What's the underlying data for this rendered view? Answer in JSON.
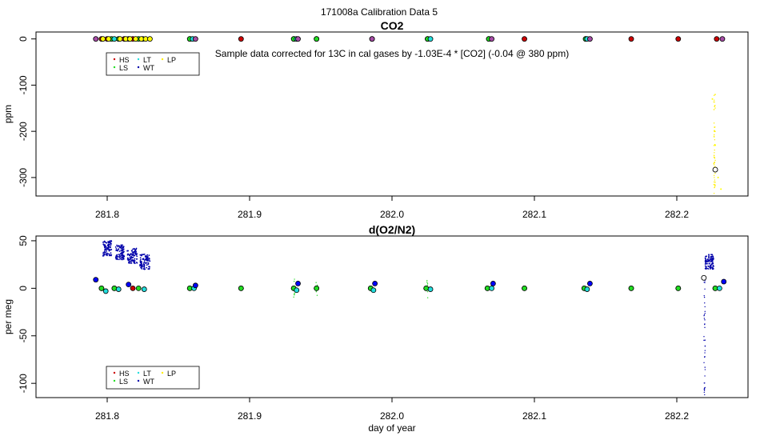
{
  "header": {
    "title": "171008a   Calibration Data 5"
  },
  "colors": {
    "HS": "#cc0000",
    "LS": "#22dd22",
    "LT": "#22dddd",
    "WT": "#0000aa",
    "LP": "#ffee00",
    "WT_marker": "#0000ff",
    "LP_marker": "#ffff00",
    "CO2_purple": "#a64ca6"
  },
  "chart_data": [
    {
      "type": "scatter",
      "title": "CO2",
      "xlabel": "",
      "ylabel": "ppm",
      "xlim": [
        281.75,
        282.25
      ],
      "ylim": [
        -340,
        15
      ],
      "x_ticks": [
        281.8,
        281.9,
        282.0,
        282.1,
        282.2
      ],
      "x_tick_labels": [
        "281.8",
        "281.9",
        "282.0",
        "282.1",
        "282.2"
      ],
      "y_ticks": [
        0,
        -100,
        -200,
        -300
      ],
      "y_tick_labels": [
        "0",
        "-100",
        "-200",
        "-300"
      ],
      "annotation": "Sample data corrected for 13C in cal gases by -1.03E-4 * [CO2] (-0.04 @ 380 ppm)",
      "legend": {
        "placement": "top-left",
        "entries": [
          "HS",
          "LS",
          "LT",
          "WT",
          "LP"
        ]
      },
      "grid": false,
      "series": [
        {
          "name": "HS",
          "color": "#cc0000",
          "x": [
            281.796,
            281.8,
            281.812,
            281.818,
            281.858,
            281.894,
            281.931,
            281.947,
            281.986,
            282.025,
            282.068,
            282.093,
            282.136,
            282.168,
            282.201,
            282.228
          ],
          "y": [
            0,
            0,
            0,
            0,
            0,
            0,
            0,
            0,
            0,
            0,
            0,
            0,
            0,
            0,
            0,
            0
          ]
        },
        {
          "name": "LS",
          "color": "#22dd22",
          "x": [
            281.803,
            281.808,
            281.822,
            281.858,
            281.931,
            281.947,
            282.025,
            282.068,
            282.136
          ],
          "y": [
            0,
            0,
            0,
            0,
            0,
            0,
            0,
            0,
            0
          ]
        },
        {
          "name": "LT",
          "color": "#22dddd",
          "x": [
            281.805,
            281.825,
            281.86,
            281.933,
            282.027,
            282.137
          ],
          "y": [
            0,
            0,
            0,
            0,
            0,
            0
          ]
        },
        {
          "name": "WT",
          "color": "#0000aa",
          "x": [
            281.792,
            281.815,
            281.862,
            281.934,
            281.986,
            282.07,
            282.139,
            282.232
          ],
          "y": [
            0,
            0,
            0,
            0,
            0,
            0,
            0,
            0
          ]
        },
        {
          "name": "LP",
          "color": "#ffee00",
          "x": [
            281.797,
            281.801,
            281.809,
            281.813,
            281.816,
            281.82,
            281.824,
            281.827,
            281.83,
            282.225,
            282.227,
            282.229,
            282.231
          ],
          "y": [
            0,
            0,
            0,
            0,
            0,
            0,
            0,
            0,
            0,
            -130,
            -230,
            -300,
            -325
          ]
        }
      ],
      "outliers": [
        {
          "x": 282.227,
          "y": -283
        }
      ]
    },
    {
      "type": "scatter",
      "title": "d(O2/N2)",
      "xlabel": "day of year",
      "ylabel": "per meg",
      "xlim": [
        281.75,
        282.25
      ],
      "ylim": [
        -115,
        55
      ],
      "x_ticks": [
        281.8,
        281.9,
        282.0,
        282.1,
        282.2
      ],
      "x_tick_labels": [
        "281.8",
        "281.9",
        "282.0",
        "282.1",
        "282.2"
      ],
      "y_ticks": [
        50,
        0,
        -50,
        -100
      ],
      "y_tick_labels": [
        "50",
        "0",
        "-50",
        "-100"
      ],
      "legend": {
        "placement": "bottom-left",
        "entries": [
          "HS",
          "LS",
          "LT",
          "WT",
          "LP"
        ]
      },
      "grid": false,
      "series": [
        {
          "name": "HS",
          "color": "#cc0000",
          "x": [
            281.796,
            281.805,
            281.818,
            281.858,
            281.894,
            281.931,
            281.947,
            281.985,
            282.024,
            282.067,
            282.093,
            282.135,
            282.168,
            282.201,
            282.227
          ],
          "y": [
            0,
            0,
            0,
            0,
            0,
            0,
            0,
            0,
            0,
            0,
            0,
            0,
            0,
            0,
            0
          ]
        },
        {
          "name": "LS",
          "color": "#22dd22",
          "x": [
            281.796,
            281.805,
            281.822,
            281.858,
            281.894,
            281.931,
            281.947,
            281.985,
            282.024,
            282.067,
            282.093,
            282.135,
            282.168,
            282.201,
            282.227
          ],
          "y": [
            0,
            0,
            0,
            0,
            0,
            0,
            0,
            0,
            0,
            0,
            0,
            0,
            0,
            0,
            0
          ]
        },
        {
          "name": "LT",
          "color": "#22dddd",
          "x": [
            281.799,
            281.808,
            281.826,
            281.861,
            281.933,
            281.987,
            282.027,
            282.07,
            282.137,
            282.23
          ],
          "y": [
            -3,
            -1,
            -1,
            0,
            -2,
            -2,
            -1,
            0,
            -1,
            0
          ]
        },
        {
          "name": "WT",
          "color": "#0000aa",
          "x": [
            281.792,
            281.815,
            281.862,
            281.934,
            281.988,
            282.071,
            282.139,
            282.233
          ],
          "y": [
            9,
            4,
            3,
            5,
            5,
            5,
            5,
            7
          ]
        },
        {
          "name": "LP",
          "color": "#ffee00",
          "x": [],
          "y": []
        }
      ],
      "sample_clusters": [
        {
          "x": [
            281.797,
            281.803
          ],
          "y": 42
        },
        {
          "x": [
            281.806,
            281.812
          ],
          "y": 38
        },
        {
          "x": [
            281.814,
            281.821
          ],
          "y": 34
        },
        {
          "x": [
            281.823,
            281.83
          ],
          "y": 28
        },
        {
          "x": [
            282.22,
            282.226
          ],
          "y": 28
        }
      ],
      "outliers": [
        {
          "x": 282.219,
          "y": 11
        }
      ]
    }
  ]
}
